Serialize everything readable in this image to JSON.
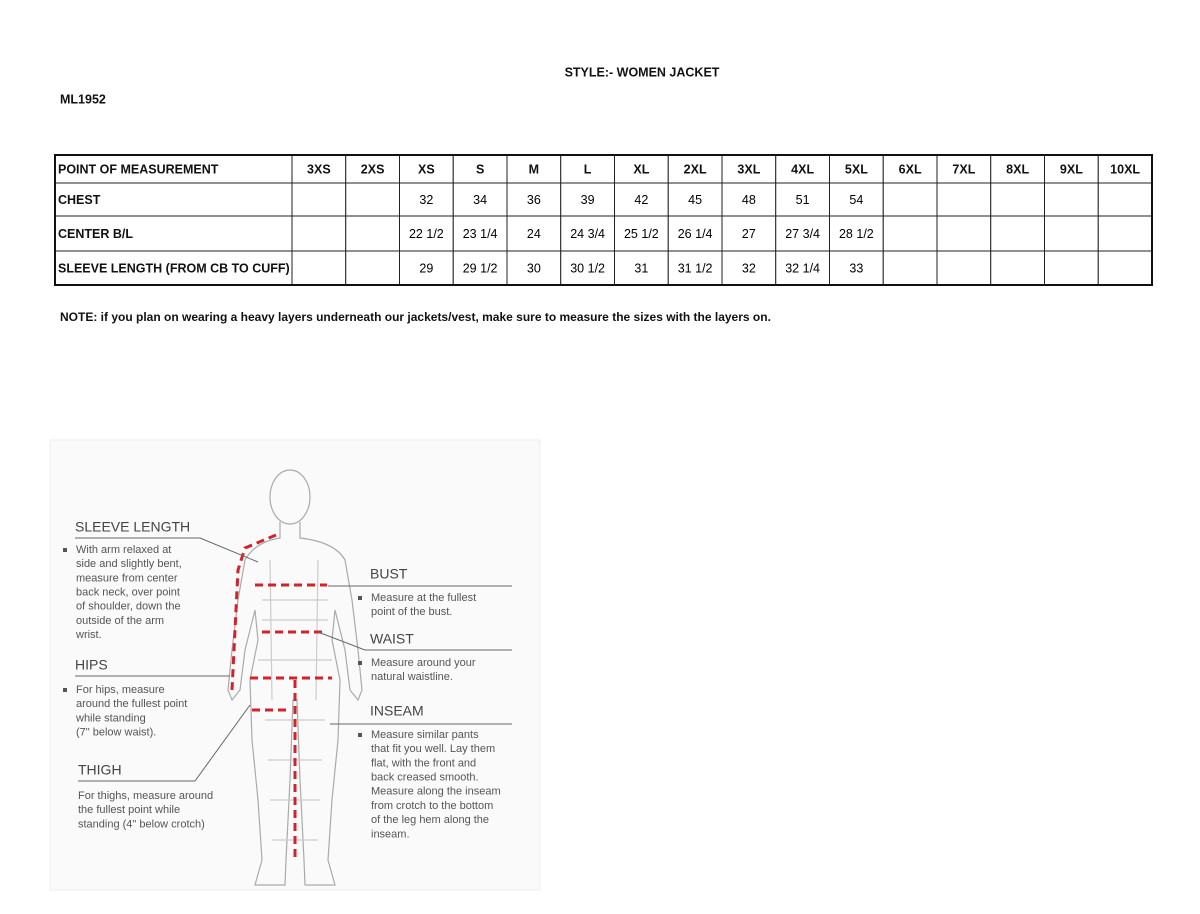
{
  "header": {
    "style": "STYLE:- WOMEN JACKET",
    "code": "ML1952"
  },
  "table": {
    "columns": [
      "POINT OF MEASUREMENT",
      "3XS",
      "2XS",
      "XS",
      "S",
      "M",
      "L",
      "XL",
      "2XL",
      "3XL",
      "4XL",
      "5XL",
      "6XL",
      "7XL",
      "8XL",
      "9XL",
      "10XL"
    ],
    "rows": [
      [
        "CHEST",
        null,
        null,
        "32",
        "34",
        "36",
        "39",
        "42",
        "45",
        "48",
        "51",
        "54",
        null,
        null,
        null,
        null,
        null
      ],
      [
        "CENTER B/L",
        null,
        null,
        "22 1/2",
        "23 1/4",
        "24",
        "24 3/4",
        "25 1/2",
        "26 1/4",
        "27",
        "27 3/4",
        "28 1/2",
        null,
        null,
        null,
        null,
        null
      ],
      [
        "SLEEVE LENGTH (FROM CB TO CUFF)",
        null,
        null,
        "29",
        "29 1/2",
        "30",
        "30 1/2",
        "31",
        "31  1/2",
        "32",
        "32 1/4",
        "33",
        null,
        null,
        null,
        null,
        null
      ]
    ]
  },
  "note": "NOTE: if you plan on wearing a heavy layers underneath our jackets/vest, make sure to measure the sizes with the layers on.",
  "guide": [
    {
      "title": "SLEEVE LENGTH",
      "bullet": true,
      "lines": [
        "With arm relaxed at",
        "side and slightly bent,",
        "measure from center",
        "back neck, over point",
        "of shoulder, down the",
        "outside of the arm",
        "wrist."
      ]
    },
    {
      "title": "HIPS",
      "bullet": true,
      "lines": [
        "For hips, measure",
        "around the fullest point",
        "while standing",
        "(7\" below waist)."
      ]
    },
    {
      "title": "THIGH",
      "bullet": false,
      "lines": [
        "For thighs, measure around",
        "the fullest point while",
        "standing (4\" below crotch)"
      ]
    },
    {
      "title": "BUST",
      "bullet": true,
      "lines": [
        "Measure at the fullest",
        "point of the bust."
      ]
    },
    {
      "title": "WAIST",
      "bullet": true,
      "lines": [
        "Measure around your",
        "natural waistline."
      ]
    },
    {
      "title": "INSEAM",
      "bullet": true,
      "lines": [
        "Measure similar pants",
        "that fit you well. Lay them",
        "flat, with the front and",
        "back creased smooth.",
        "Measure along the inseam",
        "from crotch to the bottom",
        "of the leg hem along the",
        "inseam."
      ]
    }
  ]
}
